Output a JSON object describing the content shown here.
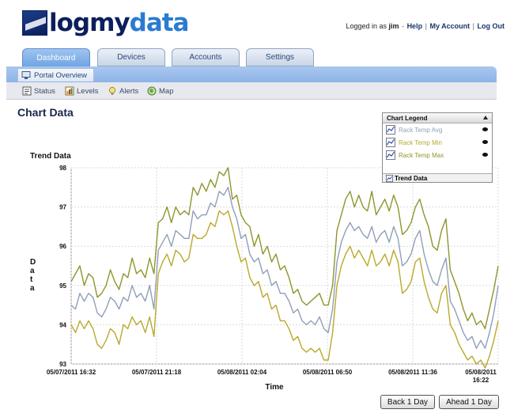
{
  "header": {
    "logo_main": "logmy",
    "logo_accent": "data",
    "logged_in_prefix": "Logged in as",
    "username": "jim",
    "links": [
      "Help",
      "My Account",
      "Log Out"
    ]
  },
  "tabs": [
    {
      "label": "Dashboard",
      "active": true
    },
    {
      "label": "Devices",
      "active": false
    },
    {
      "label": "Accounts",
      "active": false
    },
    {
      "label": "Settings",
      "active": false
    }
  ],
  "portal": {
    "label": "Portal Overview"
  },
  "subnav": [
    {
      "label": "Status",
      "icon": "status-icon"
    },
    {
      "label": "Levels",
      "icon": "levels-icon"
    },
    {
      "label": "Alerts",
      "icon": "alerts-icon"
    },
    {
      "label": "Map",
      "icon": "map-icon"
    }
  ],
  "page_title": "Chart Data",
  "legend": {
    "title": "Chart Legend",
    "footer": "Trend Data",
    "entries": [
      {
        "name": "Rack Temp Avg",
        "color": "#8f9fb8",
        "visible": true
      },
      {
        "name": "Rack Temp Min",
        "color": "#b9a92a",
        "visible": true
      },
      {
        "name": "Rack Temp Max",
        "color": "#8e952c",
        "visible": true
      }
    ]
  },
  "buttons": {
    "back": "Back 1 Day",
    "ahead": "Ahead 1 Day"
  },
  "chart_data": {
    "type": "line",
    "title": "Trend Data",
    "xlabel": "Time",
    "ylabel": "Data",
    "ylim": [
      93,
      98
    ],
    "yticks": [
      93,
      94,
      95,
      96,
      97,
      98
    ],
    "xticks": [
      {
        "label": "05/07/2011 16:32",
        "t": 0
      },
      {
        "label": "05/07/2011 21:18",
        "t": 0.2
      },
      {
        "label": "05/08/2011 02:04",
        "t": 0.4
      },
      {
        "label": "05/08/2011 06:50",
        "t": 0.6
      },
      {
        "label": "05/08/2011 11:36",
        "t": 0.8
      },
      {
        "label": "05/08/2011 16:22",
        "t": 1.0
      }
    ],
    "grid": true,
    "series": [
      {
        "name": "Rack Temp Max",
        "color": "#8e952c",
        "values": [
          95.1,
          95.3,
          95.5,
          95.0,
          95.3,
          95.2,
          94.7,
          94.8,
          95.0,
          95.4,
          95.1,
          94.9,
          95.3,
          95.2,
          95.7,
          95.3,
          95.4,
          95.2,
          95.7,
          95.3,
          96.6,
          96.7,
          97.0,
          96.6,
          97.0,
          96.8,
          96.9,
          96.8,
          97.5,
          97.3,
          97.6,
          97.4,
          97.7,
          97.5,
          97.9,
          97.8,
          98.0,
          97.2,
          97.3,
          96.8,
          96.6,
          96.5,
          96.0,
          96.3,
          95.8,
          96.0,
          95.6,
          95.8,
          95.4,
          95.5,
          95.2,
          94.8,
          94.9,
          94.6,
          94.5,
          94.6,
          94.7,
          94.8,
          94.5,
          94.5,
          95.0,
          96.4,
          96.8,
          97.2,
          97.4,
          97.0,
          97.3,
          97.0,
          96.9,
          97.4,
          96.8,
          97.0,
          97.2,
          96.9,
          97.3,
          97.0,
          96.3,
          96.4,
          96.6,
          97.0,
          97.2,
          96.8,
          96.5,
          96.0,
          95.9,
          96.4,
          96.7,
          95.4,
          95.1,
          94.8,
          94.4,
          94.1,
          94.3,
          94.0,
          94.1,
          93.9,
          94.4,
          94.9,
          95.5
        ]
      },
      {
        "name": "Rack Temp Avg",
        "color": "#8f9fb8",
        "values": [
          94.5,
          94.4,
          94.8,
          94.6,
          94.8,
          94.7,
          94.3,
          94.2,
          94.4,
          94.7,
          94.6,
          94.4,
          94.7,
          94.6,
          95.0,
          94.7,
          94.8,
          94.6,
          95.0,
          94.4,
          95.9,
          96.1,
          96.3,
          96.0,
          96.4,
          96.3,
          96.2,
          96.2,
          96.9,
          96.7,
          96.8,
          96.8,
          97.1,
          97.0,
          97.4,
          97.3,
          97.5,
          97.0,
          96.7,
          96.2,
          96.3,
          95.8,
          95.6,
          95.7,
          95.3,
          95.4,
          95.0,
          95.1,
          94.8,
          94.8,
          94.6,
          94.3,
          94.4,
          94.1,
          94.0,
          94.1,
          94.0,
          94.2,
          93.9,
          93.8,
          94.4,
          95.6,
          96.1,
          96.4,
          96.6,
          96.4,
          96.5,
          96.3,
          96.2,
          96.5,
          96.1,
          96.3,
          96.4,
          96.1,
          96.5,
          96.2,
          95.5,
          95.6,
          95.8,
          96.2,
          96.4,
          95.8,
          95.4,
          95.1,
          95.0,
          95.4,
          95.7,
          94.6,
          94.4,
          94.1,
          93.8,
          93.6,
          93.7,
          93.4,
          93.6,
          93.4,
          93.8,
          94.3,
          95.0
        ]
      },
      {
        "name": "Rack Temp Min",
        "color": "#b9a92a",
        "values": [
          94.0,
          93.8,
          94.1,
          93.9,
          94.1,
          93.9,
          93.5,
          93.4,
          93.6,
          93.9,
          93.8,
          93.5,
          94.0,
          93.9,
          94.2,
          94.0,
          94.1,
          93.8,
          94.2,
          93.7,
          95.3,
          95.6,
          95.8,
          95.5,
          95.9,
          95.8,
          95.6,
          95.7,
          96.3,
          96.2,
          96.2,
          96.3,
          96.6,
          96.5,
          96.9,
          96.8,
          96.9,
          96.5,
          96.0,
          95.6,
          95.7,
          95.2,
          95.0,
          95.1,
          94.7,
          94.8,
          94.4,
          94.5,
          94.1,
          94.1,
          93.9,
          93.6,
          93.7,
          93.4,
          93.3,
          93.4,
          93.3,
          93.4,
          93.1,
          93.1,
          93.8,
          95.0,
          95.5,
          95.8,
          96.0,
          95.7,
          95.9,
          95.7,
          95.5,
          95.9,
          95.5,
          95.6,
          95.8,
          95.5,
          95.9,
          95.6,
          94.8,
          94.9,
          95.1,
          95.6,
          95.7,
          95.1,
          94.7,
          94.4,
          94.3,
          94.8,
          95.0,
          94.0,
          93.8,
          93.5,
          93.3,
          93.1,
          93.2,
          93.0,
          93.1,
          92.9,
          93.2,
          93.6,
          94.1
        ]
      }
    ]
  }
}
